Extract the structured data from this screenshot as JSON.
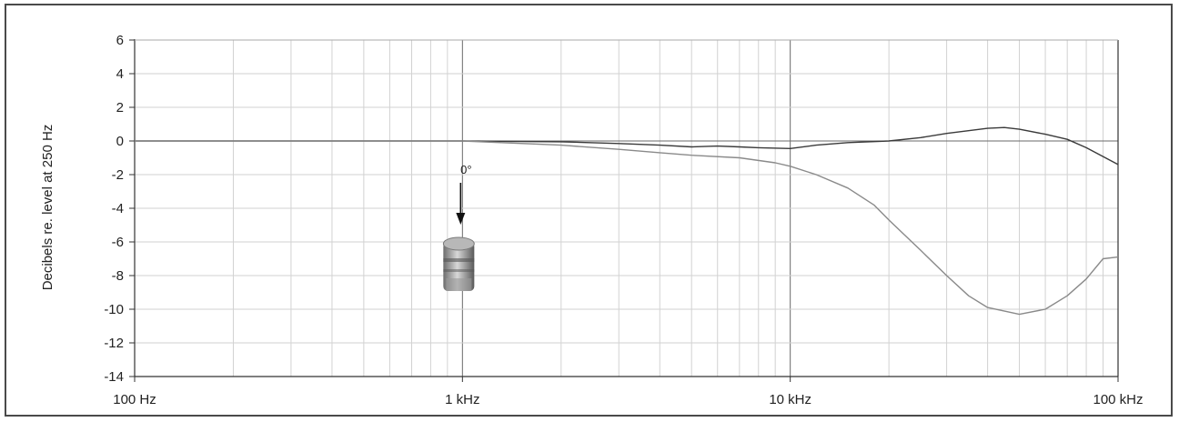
{
  "chart_data": {
    "type": "line",
    "title": "",
    "xlabel": "",
    "ylabel": "Decibels re. level at 250 Hz",
    "xscale": "log",
    "xlim": [
      100,
      100000
    ],
    "ylim": [
      -14,
      6
    ],
    "yticks": [
      6,
      4,
      2,
      0,
      -2,
      -4,
      -6,
      -8,
      -10,
      -12,
      -14
    ],
    "xticks": [
      {
        "value": 100,
        "label": "100 Hz"
      },
      {
        "value": 1000,
        "label": "1 kHz"
      },
      {
        "value": 10000,
        "label": "10 kHz"
      },
      {
        "value": 100000,
        "label": "100 kHz"
      }
    ],
    "grid": true,
    "annotation": {
      "label": "0°",
      "x": 1000,
      "icon": "microphone-icon"
    },
    "series": [
      {
        "color": "#3a3a3a",
        "points": [
          [
            100,
            0
          ],
          [
            1000,
            0
          ],
          [
            2000,
            -0.05
          ],
          [
            3000,
            -0.15
          ],
          [
            4000,
            -0.25
          ],
          [
            5000,
            -0.35
          ],
          [
            6000,
            -0.3
          ],
          [
            7000,
            -0.35
          ],
          [
            8000,
            -0.4
          ],
          [
            10000,
            -0.45
          ],
          [
            12000,
            -0.25
          ],
          [
            15000,
            -0.1
          ],
          [
            20000,
            0
          ],
          [
            25000,
            0.2
          ],
          [
            30000,
            0.45
          ],
          [
            40000,
            0.75
          ],
          [
            45000,
            0.8
          ],
          [
            50000,
            0.7
          ],
          [
            60000,
            0.4
          ],
          [
            70000,
            0.1
          ],
          [
            80000,
            -0.4
          ],
          [
            100000,
            -1.4
          ]
        ]
      },
      {
        "color": "#8a8a8a",
        "points": [
          [
            100,
            0
          ],
          [
            1000,
            0
          ],
          [
            2000,
            -0.25
          ],
          [
            3000,
            -0.5
          ],
          [
            4000,
            -0.7
          ],
          [
            5000,
            -0.85
          ],
          [
            7000,
            -1.0
          ],
          [
            9000,
            -1.3
          ],
          [
            10000,
            -1.5
          ],
          [
            12000,
            -2.0
          ],
          [
            15000,
            -2.8
          ],
          [
            18000,
            -3.8
          ],
          [
            20000,
            -4.7
          ],
          [
            25000,
            -6.5
          ],
          [
            30000,
            -8.0
          ],
          [
            35000,
            -9.2
          ],
          [
            40000,
            -9.9
          ],
          [
            50000,
            -10.3
          ],
          [
            60000,
            -10.0
          ],
          [
            70000,
            -9.2
          ],
          [
            80000,
            -8.2
          ],
          [
            90000,
            -7.0
          ],
          [
            100000,
            -6.9
          ]
        ]
      }
    ]
  }
}
